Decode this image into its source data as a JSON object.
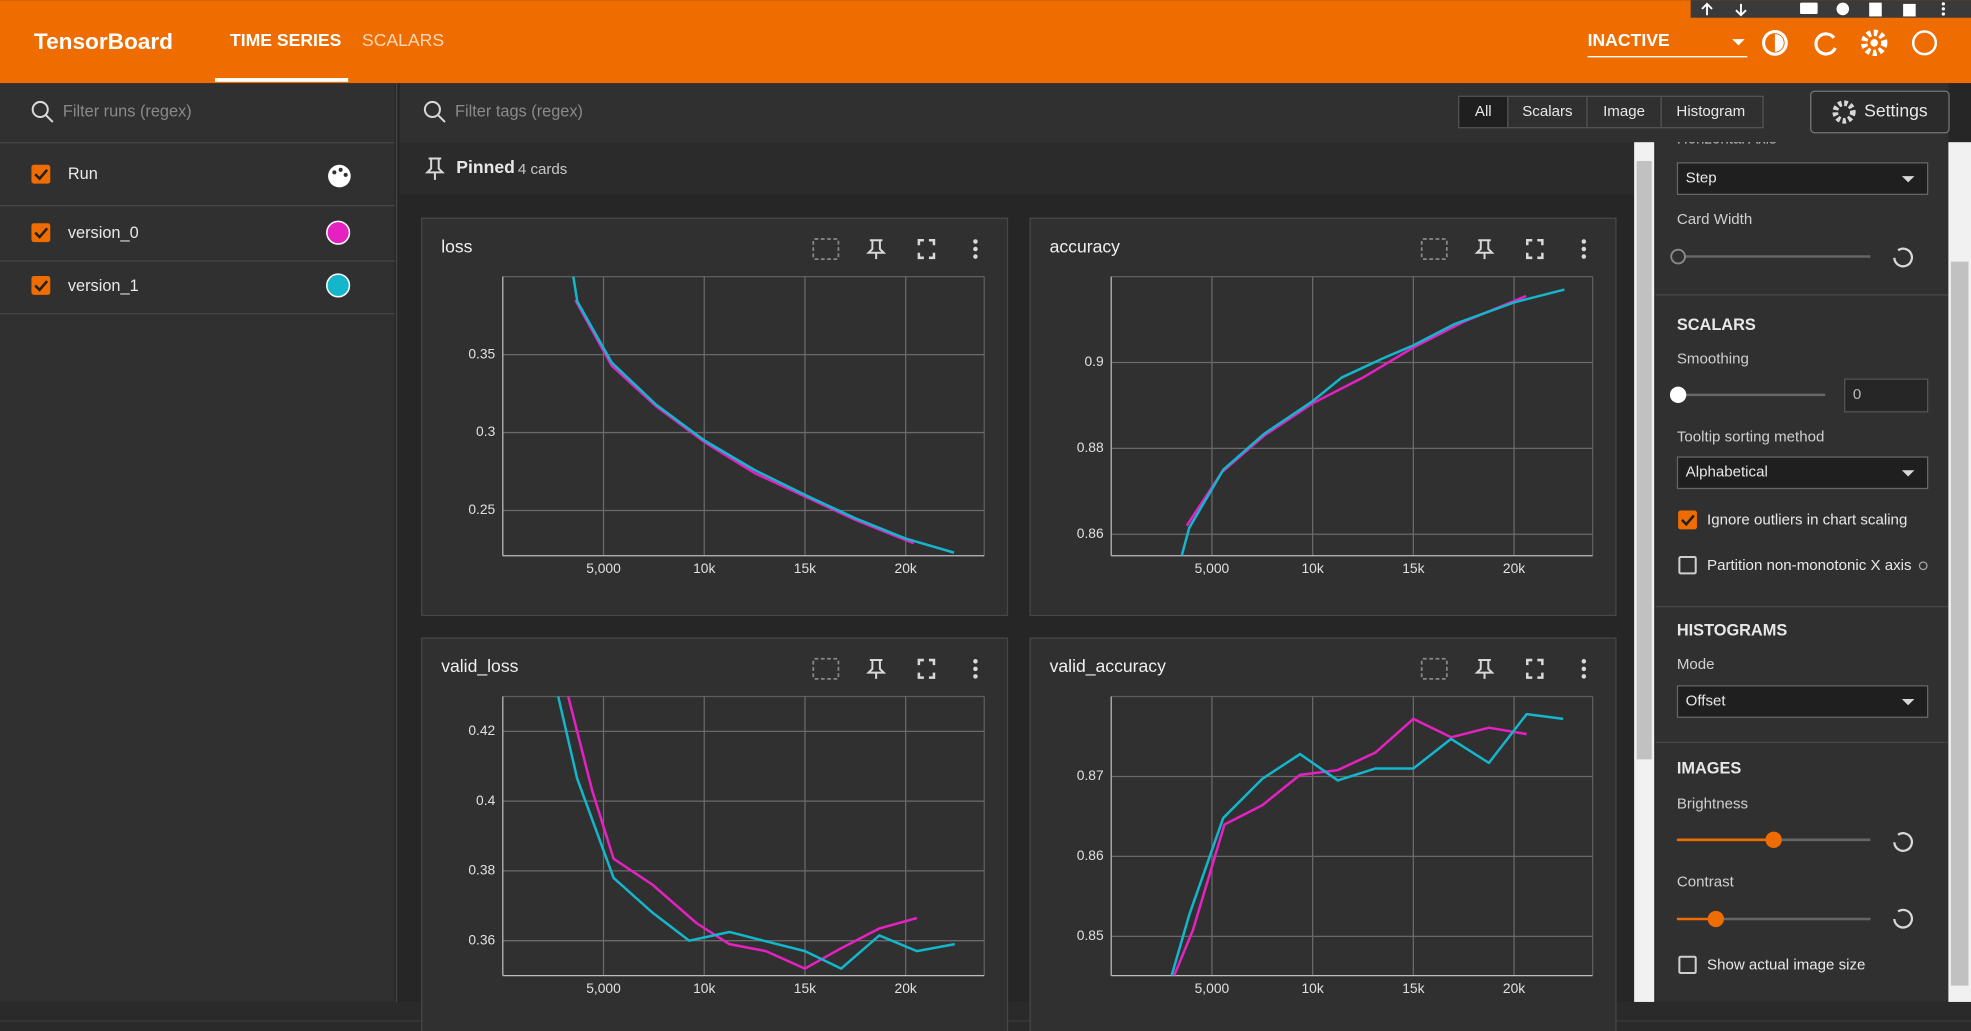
{
  "header": {
    "title": "TensorBoard",
    "tabs": [
      "TIME SERIES",
      "SCALARS"
    ],
    "status": "INACTIVE"
  },
  "runs": {
    "filter_placeholder": "Filter runs (regex)",
    "header": "Run",
    "items": [
      {
        "name": "version_0",
        "color": "#e521c2"
      },
      {
        "name": "version_1",
        "color": "#14b6cc"
      }
    ]
  },
  "tags": {
    "filter_placeholder": "Filter tags (regex)",
    "buttons": [
      "All",
      "Scalars",
      "Image",
      "Histogram"
    ]
  },
  "settings_button": "Settings",
  "pinned": {
    "label": "Pinned",
    "count": "4 cards"
  },
  "cards": [
    {
      "title": "loss",
      "xlim": [
        0,
        23900
      ],
      "ylim": [
        0.221,
        0.4
      ],
      "xticks": [
        {
          "value": 5000,
          "label": "5,000"
        },
        {
          "value": 10000,
          "label": "10k"
        },
        {
          "value": 15000,
          "label": "15k"
        },
        {
          "value": 20000,
          "label": "20k"
        }
      ],
      "yticks": [
        0.25,
        0.3,
        0.35
      ],
      "series": [
        {
          "x": [
            3600,
            5400,
            7600,
            10000,
            12500,
            15000,
            17500,
            20400
          ],
          "values": [
            0.385,
            0.343,
            0.317,
            0.294,
            0.274,
            0.259,
            0.244,
            0.229
          ]
        },
        {
          "x": [
            3500,
            3700,
            5400,
            7600,
            10000,
            12500,
            15000,
            17500,
            20000,
            22400
          ],
          "values": [
            0.4,
            0.384,
            0.345,
            0.318,
            0.295,
            0.276,
            0.26,
            0.245,
            0.232,
            0.223
          ]
        }
      ]
    },
    {
      "title": "accuracy",
      "xlim": [
        0,
        23900
      ],
      "ylim": [
        0.855,
        0.92
      ],
      "xticks": [
        {
          "value": 5000,
          "label": "5,000"
        },
        {
          "value": 10000,
          "label": "10k"
        },
        {
          "value": 15000,
          "label": "15k"
        },
        {
          "value": 20000,
          "label": "20k"
        }
      ],
      "yticks": [
        0.86,
        0.88,
        0.9
      ],
      "series": [
        {
          "x": [
            3750,
            5500,
            7600,
            10000,
            12500,
            15000,
            17500,
            20600
          ],
          "values": [
            0.862,
            0.8745,
            0.883,
            0.8905,
            0.8965,
            0.9035,
            0.9095,
            0.9155
          ]
        },
        {
          "x": [
            3500,
            3875,
            5560,
            7625,
            10000,
            11440,
            13500,
            15000,
            17060,
            20000,
            22500
          ],
          "values": [
            0.855,
            0.8615,
            0.875,
            0.8835,
            0.891,
            0.8965,
            0.901,
            0.904,
            0.909,
            0.914,
            0.917
          ]
        }
      ]
    },
    {
      "title": "valid_loss",
      "xlim": [
        0,
        23900
      ],
      "ylim": [
        0.35,
        0.43
      ],
      "xticks": [
        {
          "value": 5000,
          "label": "5,000"
        },
        {
          "value": 10000,
          "label": "10k"
        },
        {
          "value": 15000,
          "label": "15k"
        },
        {
          "value": 20000,
          "label": "20k"
        }
      ],
      "yticks": [
        0.36,
        0.38,
        0.4,
        0.42
      ],
      "series": [
        {
          "x": [
            3250,
            4440,
            5500,
            7440,
            9625,
            11250,
            13060,
            15000,
            16690,
            18690,
            20560
          ],
          "values": [
            0.43,
            0.403,
            0.3835,
            0.376,
            0.365,
            0.359,
            0.357,
            0.352,
            0.3575,
            0.3635,
            0.3665
          ]
        },
        {
          "x": [
            2750,
            3690,
            5500,
            7440,
            9250,
            11250,
            12940,
            15000,
            16800,
            18690,
            20560,
            22440
          ],
          "values": [
            0.43,
            0.4065,
            0.378,
            0.368,
            0.36,
            0.3625,
            0.36,
            0.357,
            0.352,
            0.3615,
            0.357,
            0.359
          ]
        }
      ]
    },
    {
      "title": "valid_accuracy",
      "xlim": [
        0,
        23900
      ],
      "ylim": [
        0.8451,
        0.88
      ],
      "xticks": [
        {
          "value": 5000,
          "label": "5,000"
        },
        {
          "value": 10000,
          "label": "10k"
        },
        {
          "value": 15000,
          "label": "15k"
        },
        {
          "value": 20000,
          "label": "20k"
        }
      ],
      "yticks": [
        0.85,
        0.86,
        0.87
      ],
      "series": [
        {
          "x": [
            3125,
            4060,
            5625,
            7500,
            9375,
            11250,
            13125,
            15000,
            16875,
            18750,
            20625
          ],
          "values": [
            0.8451,
            0.8508,
            0.864,
            0.8664,
            0.8702,
            0.8708,
            0.873,
            0.8772,
            0.8749,
            0.8761,
            0.8753
          ]
        },
        {
          "x": [
            3000,
            3875,
            5560,
            7500,
            9375,
            11250,
            13125,
            15000,
            16875,
            18750,
            20625,
            22440
          ],
          "values": [
            0.8451,
            0.8527,
            0.8648,
            0.8697,
            0.8728,
            0.8695,
            0.871,
            0.871,
            0.8747,
            0.8717,
            0.8778,
            0.8772
          ]
        }
      ]
    }
  ],
  "settings_panel": {
    "horizontal_axis_label": "Horizontal Axis",
    "horizontal_axis_value": "Step",
    "card_width_label": "Card Width",
    "scalars_heading": "SCALARS",
    "smoothing_label": "Smoothing",
    "smoothing_value": 0,
    "tooltip_label": "Tooltip sorting method",
    "tooltip_value": "Alphabetical",
    "ignore_outliers": "Ignore outliers in chart scaling",
    "partition": "Partition non-monotonic X axis",
    "histograms_heading": "HISTOGRAMS",
    "mode_label": "Mode",
    "mode_value": "Offset",
    "images_heading": "IMAGES",
    "brightness_label": "Brightness",
    "contrast_label": "Contrast",
    "show_actual": "Show actual image size"
  }
}
